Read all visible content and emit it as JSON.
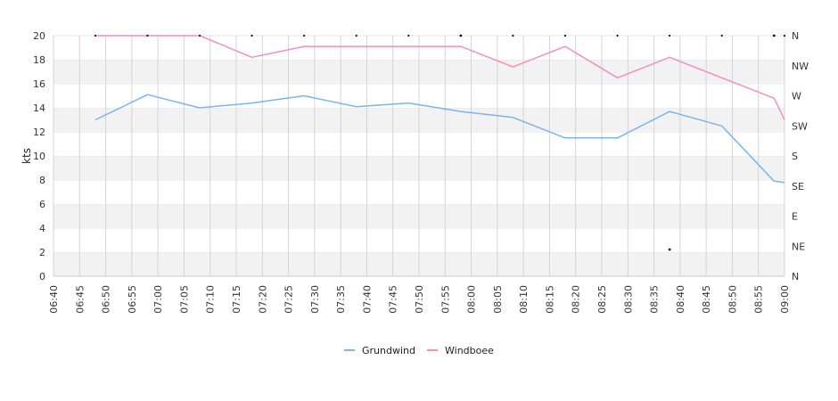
{
  "chart_data": {
    "type": "line",
    "ylabel": "kts",
    "ylim": [
      0,
      20
    ],
    "y_ticks": [
      "0",
      "2",
      "4",
      "6",
      "8",
      "10",
      "12",
      "14",
      "16",
      "18",
      "20"
    ],
    "x_ticks": [
      "06:40",
      "06:45",
      "06:50",
      "06:55",
      "07:00",
      "07:05",
      "07:10",
      "07:15",
      "07:20",
      "07:25",
      "07:30",
      "07:35",
      "07:40",
      "07:45",
      "07:50",
      "07:55",
      "08:00",
      "08:05",
      "08:10",
      "08:15",
      "08:20",
      "08:25",
      "08:30",
      "08:35",
      "08:40",
      "08:45",
      "08:50",
      "08:55",
      "09:00"
    ],
    "direction_ticks": [
      "N",
      "NE",
      "E",
      "SE",
      "S",
      "SW",
      "W",
      "NW",
      "N"
    ],
    "grid": true,
    "legend_position": "bottom",
    "series": [
      {
        "name": "Grundwind",
        "color": "#7cb5ec",
        "x": [
          "06:48",
          "06:58",
          "07:08",
          "07:18",
          "07:28",
          "07:38",
          "07:48",
          "07:58",
          "08:08",
          "08:18",
          "08:28",
          "08:38",
          "08:48",
          "08:58",
          "09:00"
        ],
        "values": [
          13.0,
          15.1,
          14.0,
          14.4,
          15.0,
          14.1,
          14.4,
          13.7,
          13.2,
          11.5,
          11.5,
          13.7,
          12.5,
          7.9,
          7.8
        ]
      },
      {
        "name": "Windboee",
        "color": "#f28fbf",
        "x": [
          "06:48",
          "06:58",
          "07:08",
          "07:18",
          "07:28",
          "07:38",
          "07:48",
          "07:58",
          "08:08",
          "08:18",
          "08:28",
          "08:38",
          "08:48",
          "08:58",
          "09:00"
        ],
        "values": [
          20.0,
          20.0,
          20.0,
          18.2,
          19.1,
          19.1,
          19.1,
          19.1,
          17.4,
          19.1,
          16.5,
          18.2,
          16.5,
          14.8,
          13.0
        ]
      }
    ]
  }
}
